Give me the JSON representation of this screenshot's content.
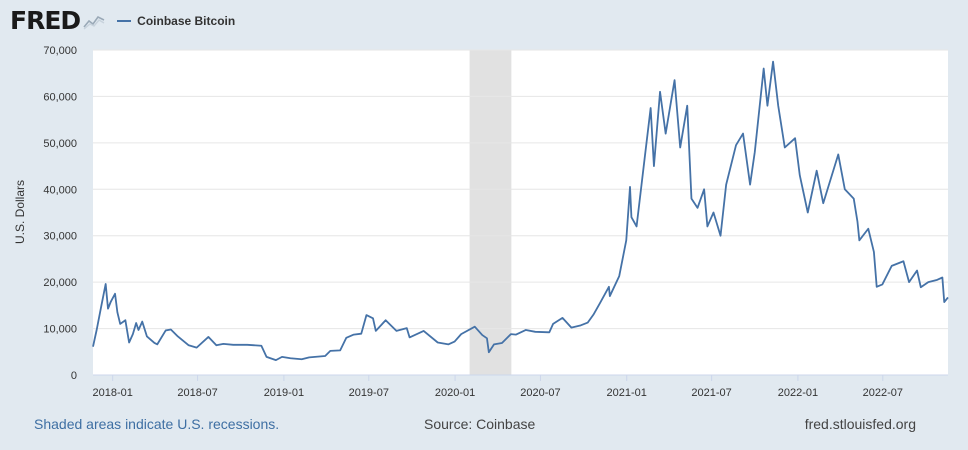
{
  "header": {
    "logo_text": "FRED",
    "legend_label": "Coinbase Bitcoin",
    "series_color": "#4572a7"
  },
  "footer": {
    "recession_note": "Shaded areas indicate U.S. recessions.",
    "source": "Source: Coinbase",
    "site": "fred.stlouisfed.org"
  },
  "chart_data": {
    "type": "line",
    "title": "",
    "xlabel": "",
    "ylabel": "U.S. Dollars",
    "ylim": [
      0,
      70000
    ],
    "xlim": [
      "2017-11-20",
      "2022-11-17"
    ],
    "y_ticks": [
      0,
      10000,
      20000,
      30000,
      40000,
      50000,
      60000,
      70000
    ],
    "y_tick_labels": [
      "0",
      "10,000",
      "20,000",
      "30,000",
      "40,000",
      "50,000",
      "60,000",
      "70,000"
    ],
    "x_ticks": [
      "2018-01-01",
      "2018-07-01",
      "2019-01-01",
      "2019-07-01",
      "2020-01-01",
      "2020-07-01",
      "2021-01-01",
      "2021-07-01",
      "2022-01-01",
      "2022-07-01"
    ],
    "x_tick_labels": [
      "2018-01",
      "2018-07",
      "2019-01",
      "2019-07",
      "2020-01",
      "2020-07",
      "2021-01",
      "2021-07",
      "2022-01",
      "2022-07"
    ],
    "grid": true,
    "legend_position": "top",
    "recession_shading": [
      {
        "start": "2020-02-01",
        "end": "2020-04-30"
      }
    ],
    "series": [
      {
        "name": "Coinbase Bitcoin",
        "color": "#4572a7",
        "points": [
          [
            "2017-11-20",
            6100
          ],
          [
            "2017-11-28",
            9800
          ],
          [
            "2017-12-07",
            14500
          ],
          [
            "2017-12-17",
            19600
          ],
          [
            "2017-12-22",
            14300
          ],
          [
            "2017-12-28",
            15800
          ],
          [
            "2018-01-06",
            17500
          ],
          [
            "2018-01-11",
            13500
          ],
          [
            "2018-01-17",
            11000
          ],
          [
            "2018-01-28",
            11800
          ],
          [
            "2018-02-05",
            7000
          ],
          [
            "2018-02-13",
            8800
          ],
          [
            "2018-02-20",
            11200
          ],
          [
            "2018-02-25",
            9700
          ],
          [
            "2018-03-05",
            11500
          ],
          [
            "2018-03-15",
            8300
          ],
          [
            "2018-03-31",
            6900
          ],
          [
            "2018-04-06",
            6600
          ],
          [
            "2018-04-24",
            9600
          ],
          [
            "2018-05-05",
            9800
          ],
          [
            "2018-05-20",
            8300
          ],
          [
            "2018-06-12",
            6400
          ],
          [
            "2018-06-29",
            5900
          ],
          [
            "2018-07-24",
            8200
          ],
          [
            "2018-08-10",
            6400
          ],
          [
            "2018-08-25",
            6700
          ],
          [
            "2018-09-15",
            6500
          ],
          [
            "2018-10-15",
            6500
          ],
          [
            "2018-11-14",
            6300
          ],
          [
            "2018-11-25",
            3900
          ],
          [
            "2018-12-15",
            3200
          ],
          [
            "2018-12-28",
            3900
          ],
          [
            "2019-01-15",
            3600
          ],
          [
            "2019-02-08",
            3400
          ],
          [
            "2019-02-24",
            3800
          ],
          [
            "2019-03-30",
            4100
          ],
          [
            "2019-04-10",
            5200
          ],
          [
            "2019-05-01",
            5300
          ],
          [
            "2019-05-14",
            8000
          ],
          [
            "2019-05-30",
            8700
          ],
          [
            "2019-06-15",
            8900
          ],
          [
            "2019-06-26",
            12900
          ],
          [
            "2019-07-10",
            12200
          ],
          [
            "2019-07-16",
            9500
          ],
          [
            "2019-08-06",
            11800
          ],
          [
            "2019-08-29",
            9500
          ],
          [
            "2019-09-20",
            10100
          ],
          [
            "2019-09-26",
            8100
          ],
          [
            "2019-10-26",
            9500
          ],
          [
            "2019-11-25",
            7000
          ],
          [
            "2019-12-18",
            6600
          ],
          [
            "2019-12-31",
            7200
          ],
          [
            "2020-01-14",
            8800
          ],
          [
            "2020-02-12",
            10400
          ],
          [
            "2020-02-28",
            8600
          ],
          [
            "2020-03-09",
            7900
          ],
          [
            "2020-03-13",
            4900
          ],
          [
            "2020-03-24",
            6600
          ],
          [
            "2020-04-10",
            6900
          ],
          [
            "2020-04-29",
            8800
          ],
          [
            "2020-05-10",
            8700
          ],
          [
            "2020-05-31",
            9700
          ],
          [
            "2020-06-20",
            9300
          ],
          [
            "2020-07-20",
            9200
          ],
          [
            "2020-07-28",
            11000
          ],
          [
            "2020-08-17",
            12300
          ],
          [
            "2020-09-05",
            10200
          ],
          [
            "2020-09-25",
            10700
          ],
          [
            "2020-10-10",
            11300
          ],
          [
            "2020-10-22",
            13000
          ],
          [
            "2020-11-05",
            15500
          ],
          [
            "2020-11-24",
            19000
          ],
          [
            "2020-11-26",
            17000
          ],
          [
            "2020-12-16",
            21300
          ],
          [
            "2020-12-31",
            29000
          ],
          [
            "2021-01-08",
            40500
          ],
          [
            "2021-01-11",
            34000
          ],
          [
            "2021-01-22",
            32000
          ],
          [
            "2021-02-08",
            46500
          ],
          [
            "2021-02-21",
            57500
          ],
          [
            "2021-02-28",
            45000
          ],
          [
            "2021-03-13",
            61000
          ],
          [
            "2021-03-25",
            52000
          ],
          [
            "2021-04-13",
            63500
          ],
          [
            "2021-04-25",
            49000
          ],
          [
            "2021-05-10",
            58000
          ],
          [
            "2021-05-19",
            38000
          ],
          [
            "2021-06-01",
            36000
          ],
          [
            "2021-06-15",
            40000
          ],
          [
            "2021-06-22",
            32000
          ],
          [
            "2021-07-05",
            35000
          ],
          [
            "2021-07-20",
            30000
          ],
          [
            "2021-08-01",
            41000
          ],
          [
            "2021-08-22",
            49500
          ],
          [
            "2021-09-06",
            52000
          ],
          [
            "2021-09-21",
            41000
          ],
          [
            "2021-10-01",
            48000
          ],
          [
            "2021-10-20",
            66000
          ],
          [
            "2021-10-28",
            58000
          ],
          [
            "2021-11-09",
            67500
          ],
          [
            "2021-11-20",
            58000
          ],
          [
            "2021-12-04",
            49000
          ],
          [
            "2021-12-26",
            51000
          ],
          [
            "2022-01-05",
            43000
          ],
          [
            "2022-01-22",
            35000
          ],
          [
            "2022-02-10",
            44000
          ],
          [
            "2022-02-24",
            37000
          ],
          [
            "2022-03-28",
            47500
          ],
          [
            "2022-04-11",
            40000
          ],
          [
            "2022-04-30",
            38000
          ],
          [
            "2022-05-08",
            33000
          ],
          [
            "2022-05-12",
            29000
          ],
          [
            "2022-05-31",
            31500
          ],
          [
            "2022-06-12",
            26500
          ],
          [
            "2022-06-18",
            19000
          ],
          [
            "2022-06-30",
            19500
          ],
          [
            "2022-07-20",
            23500
          ],
          [
            "2022-08-14",
            24500
          ],
          [
            "2022-08-26",
            20000
          ],
          [
            "2022-09-12",
            22500
          ],
          [
            "2022-09-20",
            18900
          ],
          [
            "2022-10-06",
            20000
          ],
          [
            "2022-10-25",
            20500
          ],
          [
            "2022-11-05",
            21000
          ],
          [
            "2022-11-09",
            15700
          ],
          [
            "2022-11-17",
            16700
          ]
        ]
      }
    ]
  }
}
